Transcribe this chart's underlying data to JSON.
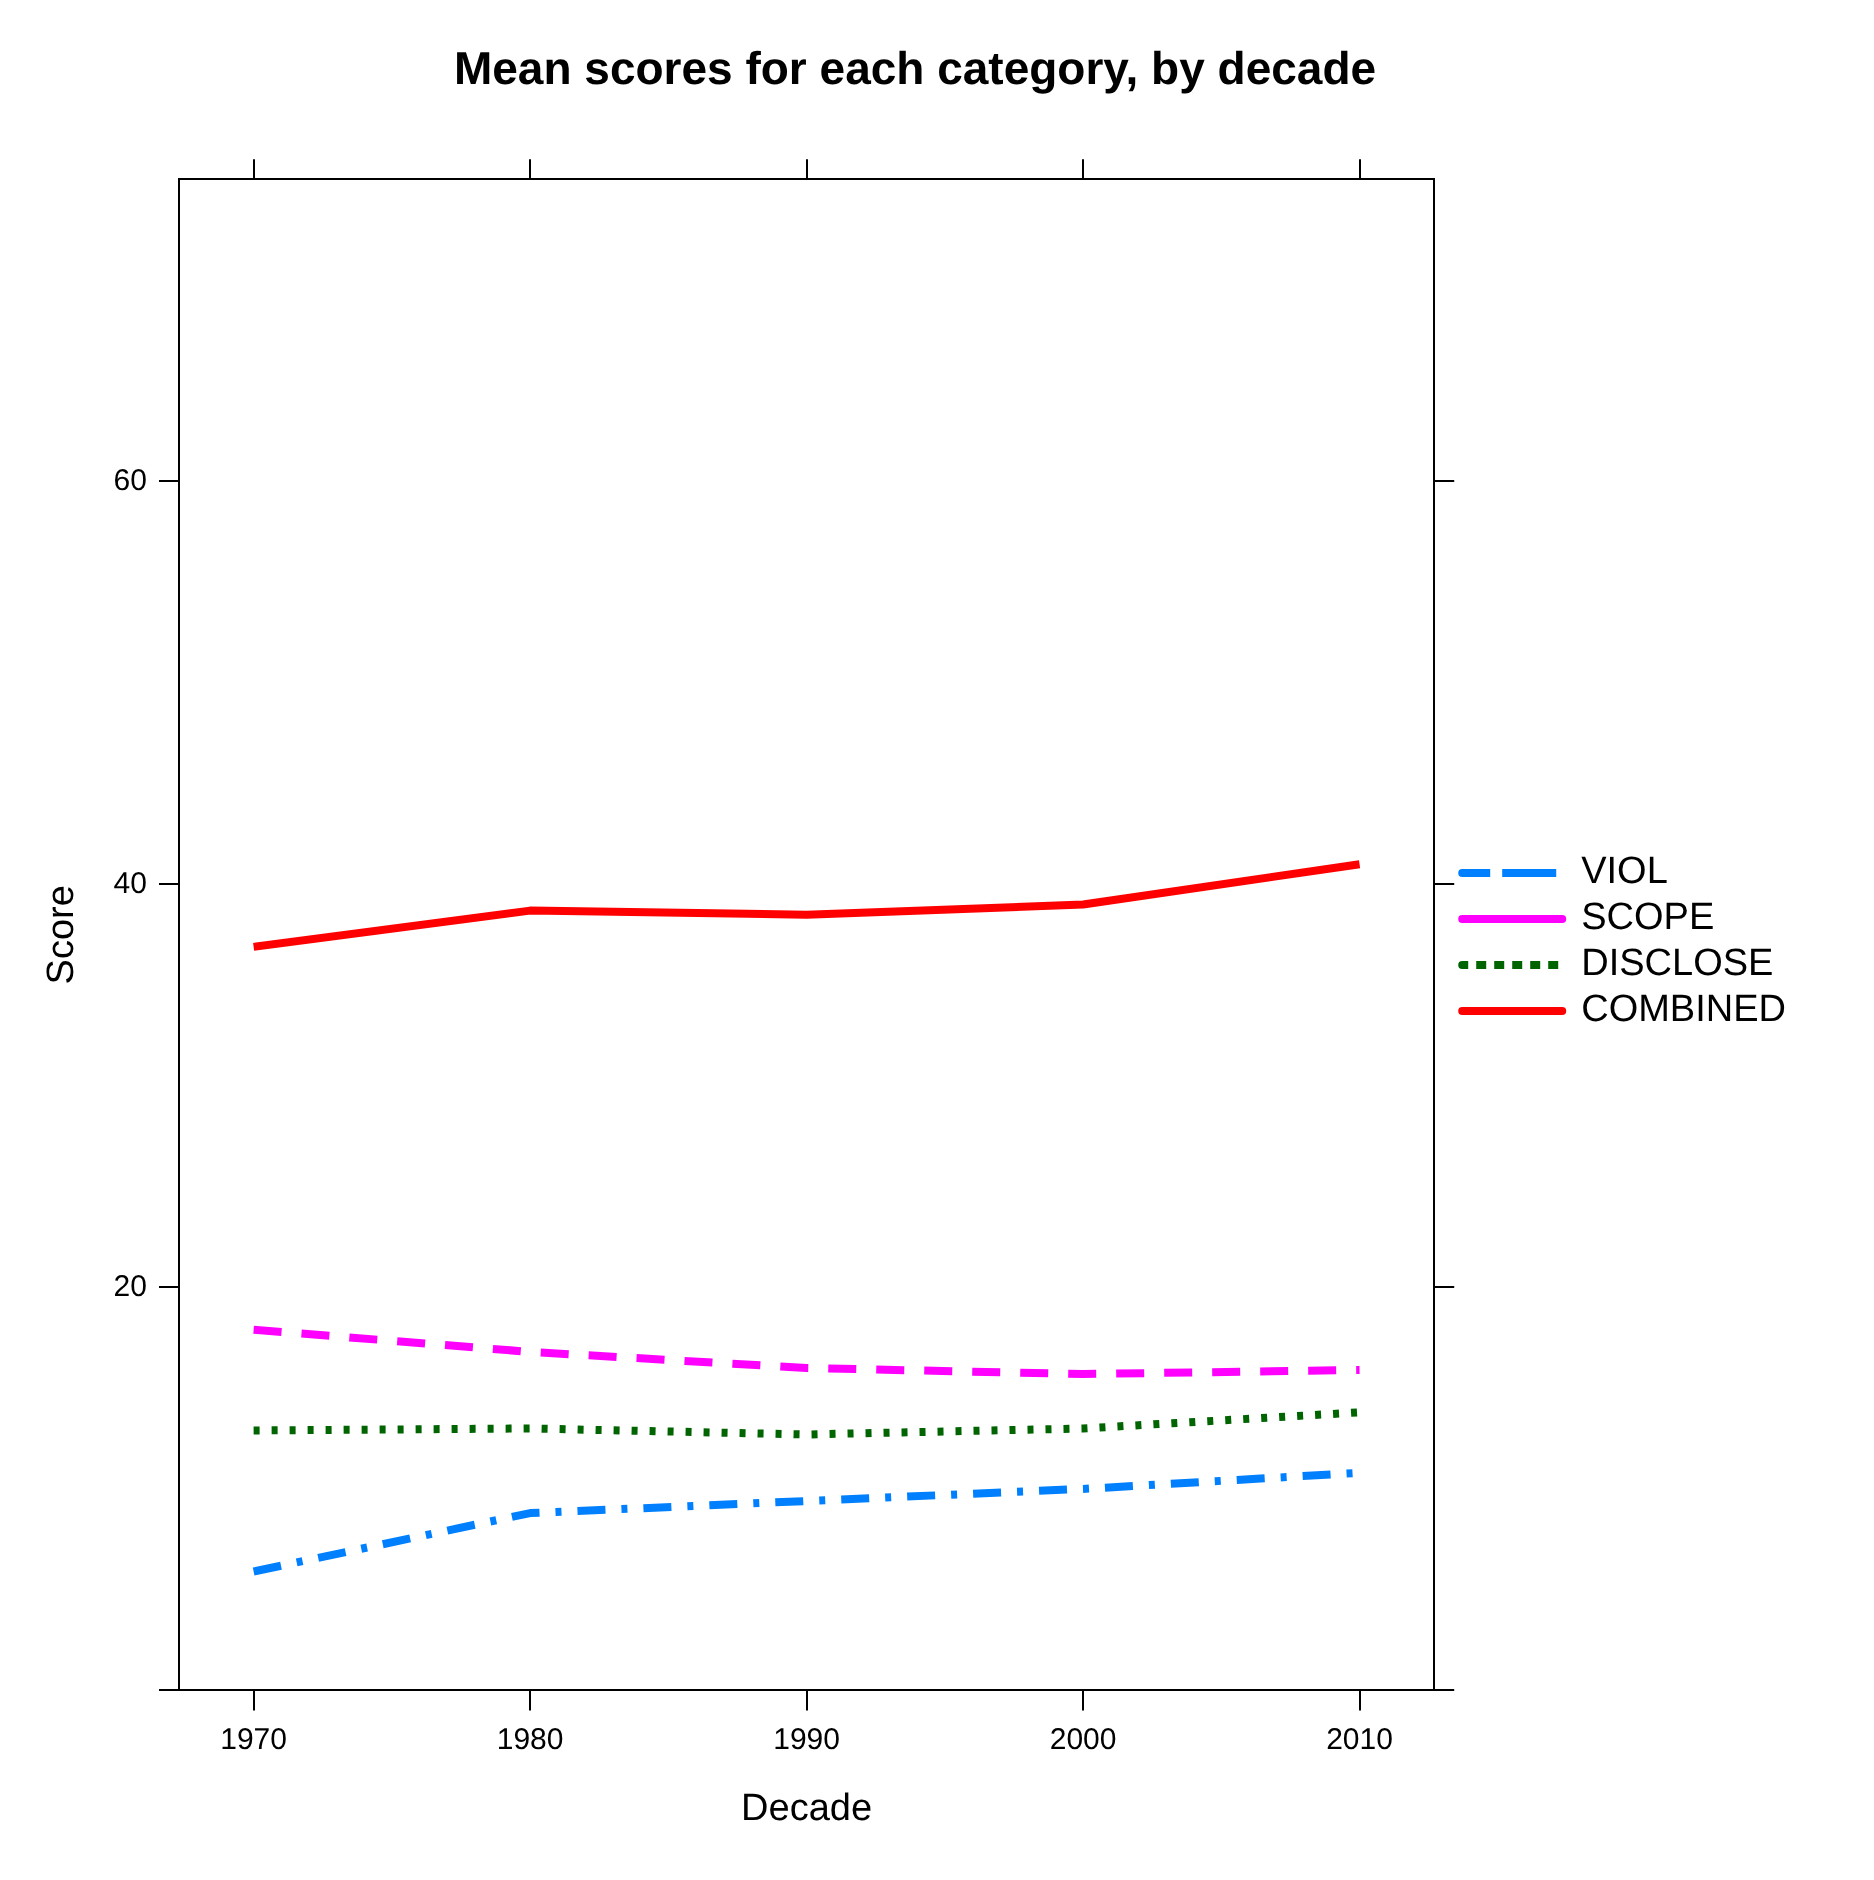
{
  "chart_data": {
    "type": "line",
    "title": "Mean scores for each category, by decade",
    "xlabel": "Decade",
    "ylabel": "Score",
    "x": [
      1970,
      1980,
      1990,
      2000,
      2010
    ],
    "series": [
      {
        "name": "VIOL",
        "color": "#0080ff",
        "line_style": "dashdot",
        "values": [
          5.9,
          8.8,
          9.4,
          10.0,
          10.8
        ]
      },
      {
        "name": "SCOPE",
        "color": "#ff00ff",
        "line_style": "dashed",
        "values": [
          17.9,
          16.8,
          16.0,
          15.7,
          15.9
        ]
      },
      {
        "name": "DISCLOSE",
        "color": "#006400",
        "line_style": "dotted",
        "values": [
          12.9,
          13.0,
          12.7,
          13.0,
          13.8
        ]
      },
      {
        "name": "COMBINED",
        "color": "#ff0000",
        "line_style": "solid",
        "values": [
          36.9,
          38.7,
          38.5,
          39.0,
          41.0
        ]
      }
    ],
    "xlim": [
      1967.3,
      2012.7
    ],
    "xticks": [
      1970,
      1980,
      1990,
      2000,
      2010
    ],
    "ylim": [
      0,
      75
    ],
    "yticks": [
      {
        "value": 0,
        "label": null
      },
      20,
      40,
      60
    ],
    "legend": "right",
    "marker": "none",
    "grid": false
  }
}
